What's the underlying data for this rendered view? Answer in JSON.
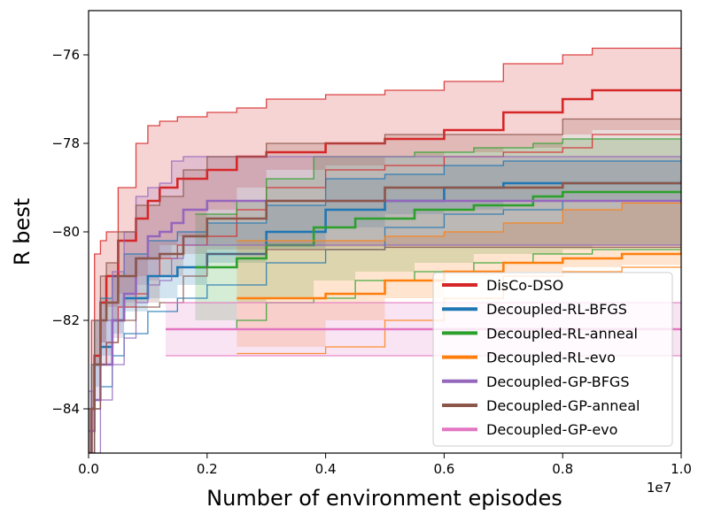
{
  "chart_data": {
    "type": "line",
    "title": "",
    "xlabel": "Number of environment episodes",
    "ylabel": "R best",
    "x_multiplier_label": "1e7",
    "xlim": [
      0,
      1.0
    ],
    "ylim": [
      -85,
      -75
    ],
    "x_ticks": [
      0.0,
      0.2,
      0.4,
      0.6,
      0.8,
      1.0
    ],
    "x_tick_labels": [
      "0.0",
      "0.2",
      "0.4",
      "0.6",
      "0.8",
      "1.0"
    ],
    "y_ticks": [
      -84,
      -82,
      -80,
      -78,
      -76
    ],
    "y_tick_labels": [
      "−84",
      "−82",
      "−80",
      "−78",
      "−76"
    ],
    "legend_position": "lower-right",
    "series": [
      {
        "name": "DisCo-DSO",
        "color": "#d62728",
        "x": [
          0.0,
          0.005,
          0.01,
          0.02,
          0.03,
          0.05,
          0.08,
          0.1,
          0.12,
          0.15,
          0.2,
          0.25,
          0.3,
          0.4,
          0.5,
          0.6,
          0.7,
          0.8,
          0.85,
          1.0
        ],
        "mean": [
          -85.0,
          -84.0,
          -82.8,
          -81.6,
          -81.0,
          -80.2,
          -79.7,
          -79.3,
          -79.0,
          -78.8,
          -78.6,
          -78.3,
          -78.2,
          -78.0,
          -77.9,
          -77.7,
          -77.3,
          -77.0,
          -76.8,
          -76.8
        ],
        "upper": [
          -84.0,
          -82.0,
          -80.5,
          -80.2,
          -80.0,
          -79.0,
          -78.0,
          -77.6,
          -77.5,
          -77.4,
          -77.3,
          -77.2,
          -77.0,
          -76.9,
          -76.8,
          -76.6,
          -76.2,
          -76.0,
          -75.85,
          -75.85
        ],
        "lower": [
          -85.0,
          -85.0,
          -84.0,
          -83.0,
          -82.5,
          -81.7,
          -81.4,
          -81.0,
          -80.6,
          -80.3,
          -80.1,
          -79.5,
          -79.0,
          -78.6,
          -78.5,
          -78.3,
          -78.2,
          -78.1,
          -77.8,
          -77.7
        ]
      },
      {
        "name": "Decoupled-RL-BFGS",
        "color": "#1f77b4",
        "x": [
          0.0,
          0.005,
          0.01,
          0.02,
          0.04,
          0.06,
          0.1,
          0.15,
          0.2,
          0.3,
          0.4,
          0.5,
          0.6,
          0.7,
          0.8,
          1.0
        ],
        "mean": [
          -85.0,
          -84.0,
          -83.0,
          -82.6,
          -82.0,
          -81.5,
          -81.0,
          -80.8,
          -80.5,
          -80.0,
          -79.5,
          -79.3,
          -79.0,
          -78.9,
          -78.9,
          -78.85
        ],
        "upper": [
          -84.0,
          -83.0,
          -82.0,
          -81.5,
          -81.0,
          -80.5,
          -80.2,
          -80.0,
          -79.8,
          -79.4,
          -78.8,
          -78.7,
          -78.5,
          -78.4,
          -78.4,
          -78.4
        ],
        "lower": [
          -85.0,
          -85.0,
          -84.0,
          -83.5,
          -82.8,
          -82.3,
          -81.8,
          -81.5,
          -81.2,
          -80.7,
          -80.4,
          -79.9,
          -79.6,
          -79.5,
          -79.3,
          -79.3
        ]
      },
      {
        "name": "Decoupled-RL-anneal",
        "color": "#2ca02c",
        "x": [
          0.18,
          0.25,
          0.3,
          0.38,
          0.45,
          0.55,
          0.65,
          0.75,
          0.8,
          0.85,
          1.0
        ],
        "mean": [
          -80.8,
          -80.6,
          -80.3,
          -79.9,
          -79.7,
          -79.5,
          -79.4,
          -79.2,
          -79.1,
          -79.1,
          -79.1
        ],
        "upper": [
          -79.6,
          -79.3,
          -78.8,
          -78.3,
          -78.3,
          -78.2,
          -78.1,
          -78.0,
          -77.9,
          -77.9,
          -77.9
        ],
        "lower": [
          -82.2,
          -82.0,
          -81.6,
          -81.5,
          -81.1,
          -80.9,
          -80.7,
          -80.5,
          -80.5,
          -80.4,
          -80.3
        ]
      },
      {
        "name": "Decoupled-RL-evo",
        "color": "#ff7f0e",
        "x": [
          0.25,
          0.4,
          0.5,
          0.6,
          0.7,
          0.8,
          0.9,
          1.0
        ],
        "mean": [
          -81.5,
          -81.4,
          -81.1,
          -80.9,
          -80.7,
          -80.6,
          -80.5,
          -80.45
        ],
        "upper": [
          -80.2,
          -80.2,
          -80.1,
          -80.0,
          -79.8,
          -79.5,
          -79.35,
          -79.3
        ],
        "lower": [
          -82.75,
          -82.6,
          -82.0,
          -81.5,
          -81.0,
          -80.9,
          -80.8,
          -80.75
        ]
      },
      {
        "name": "Decoupled-GP-BFGS",
        "color": "#9467bd",
        "x": [
          0.0,
          0.01,
          0.02,
          0.04,
          0.06,
          0.08,
          0.1,
          0.12,
          0.14,
          0.16,
          0.2,
          1.0
        ],
        "mean": [
          -84.5,
          -83.8,
          -83.0,
          -82.0,
          -81.4,
          -80.6,
          -80.1,
          -80.0,
          -79.8,
          -79.5,
          -79.3,
          -79.3
        ],
        "upper": [
          -83.6,
          -83.0,
          -82.0,
          -80.9,
          -80.0,
          -79.2,
          -79.0,
          -78.9,
          -78.4,
          -78.3,
          -78.3,
          -78.3
        ],
        "lower": [
          -85.0,
          -85.0,
          -83.8,
          -83.0,
          -82.4,
          -81.6,
          -81.2,
          -81.1,
          -80.6,
          -80.3,
          -80.3,
          -80.3
        ]
      },
      {
        "name": "Decoupled-GP-anneal",
        "color": "#8c564b",
        "x": [
          0.0,
          0.005,
          0.01,
          0.02,
          0.03,
          0.05,
          0.08,
          0.12,
          0.16,
          0.2,
          0.3,
          0.5,
          0.8,
          1.0
        ],
        "mean": [
          -85.0,
          -84.0,
          -83.0,
          -82.0,
          -81.6,
          -81.0,
          -80.6,
          -80.5,
          -80.1,
          -79.7,
          -79.3,
          -79.0,
          -78.9,
          -78.9
        ],
        "upper": [
          -84.0,
          -83.0,
          -82.0,
          -81.0,
          -80.7,
          -80.0,
          -79.4,
          -79.2,
          -78.6,
          -78.3,
          -78.0,
          -77.8,
          -77.45,
          -77.4
        ],
        "lower": [
          -85.0,
          -85.0,
          -84.0,
          -83.0,
          -82.5,
          -82.0,
          -81.7,
          -81.6,
          -81.0,
          -80.5,
          -80.4,
          -80.35,
          -80.35,
          -80.35
        ]
      },
      {
        "name": "Decoupled-GP-evo",
        "color": "#e377c2",
        "x": [
          0.13,
          1.0
        ],
        "mean": [
          -82.2,
          -82.2
        ],
        "upper": [
          -81.6,
          -81.6
        ],
        "lower": [
          -82.8,
          -82.8
        ]
      }
    ]
  }
}
